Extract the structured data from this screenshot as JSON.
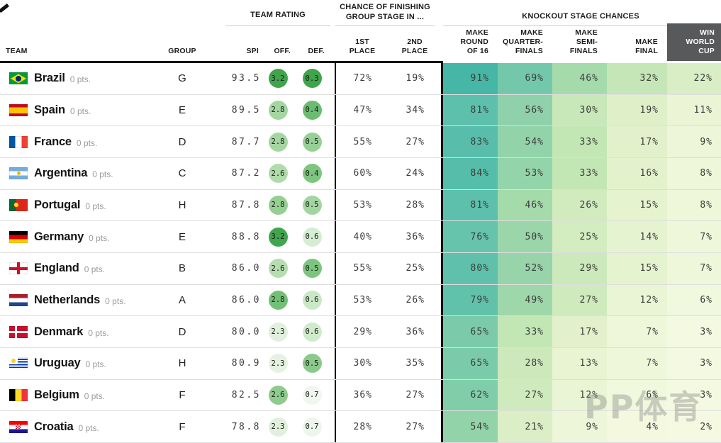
{
  "header": {
    "group_headers": {
      "team_rating": "TEAM RATING",
      "group_stage": "CHANCE OF FINISHING\nGROUP STAGE IN ...",
      "knockout": "KNOCKOUT STAGE CHANCES"
    },
    "columns": {
      "team": "TEAM",
      "group": "GROUP",
      "spi": "SPI",
      "off": "OFF.",
      "def": "DEF.",
      "p1": "1ST\nPLACE",
      "p2": "2ND\nPLACE",
      "r16": "MAKE\nROUND\nOF 16",
      "qf": "MAKE\nQUARTER-\nFINALS",
      "sf": "MAKE\nSEMI-\nFINALS",
      "mf": "MAKE\nFINAL",
      "win": "WIN\nWORLD\nCUP"
    }
  },
  "colors": {
    "selected_column_bg": "#58595b",
    "header_rule": "#131313",
    "row_border": "#dedede",
    "scale": [
      [
        0,
        [
          247,
          250,
          229
        ]
      ],
      [
        10,
        [
          236,
          246,
          215
        ]
      ],
      [
        20,
        [
          221,
          239,
          199
        ]
      ],
      [
        30,
        [
          201,
          232,
          185
        ]
      ],
      [
        40,
        [
          180,
          224,
          172
        ]
      ],
      [
        50,
        [
          155,
          214,
          170
        ]
      ],
      [
        60,
        [
          133,
          206,
          170
        ]
      ],
      [
        70,
        [
          113,
          199,
          171
        ]
      ],
      [
        80,
        [
          95,
          193,
          172
        ]
      ],
      [
        90,
        [
          72,
          184,
          167
        ]
      ],
      [
        100,
        [
          55,
          176,
          160
        ]
      ]
    ]
  },
  "watermark": {
    "text": "PP体育"
  },
  "teams": [
    {
      "name": "Brazil",
      "pts": "0 pts.",
      "flag": "br",
      "group": "G",
      "spi": "93.5",
      "off": "3.2",
      "off_color": "#3fa44b",
      "def": "0.3",
      "def_color": "#3fa44b",
      "p1": 72,
      "p2": 19,
      "r16": 91,
      "qf": 69,
      "sf": 46,
      "mf": 32,
      "win": 22
    },
    {
      "name": "Spain",
      "pts": "0 pts.",
      "flag": "es",
      "group": "E",
      "spi": "89.5",
      "off": "2.8",
      "off_color": "#a3d6a0",
      "def": "0.4",
      "def_color": "#6abd70",
      "p1": 47,
      "p2": 34,
      "r16": 81,
      "qf": 56,
      "sf": 30,
      "mf": 19,
      "win": 11
    },
    {
      "name": "France",
      "pts": "0 pts.",
      "flag": "fr",
      "group": "D",
      "spi": "87.7",
      "off": "2.8",
      "off_color": "#a3d6a0",
      "def": "0.5",
      "def_color": "#96d095",
      "p1": 55,
      "p2": 27,
      "r16": 83,
      "qf": 54,
      "sf": 33,
      "mf": 17,
      "win": 9
    },
    {
      "name": "Argentina",
      "pts": "0 pts.",
      "flag": "ar",
      "group": "C",
      "spi": "87.2",
      "off": "2.6",
      "off_color": "#b0dbaa",
      "def": "0.4",
      "def_color": "#7dc57f",
      "p1": 60,
      "p2": 24,
      "r16": 84,
      "qf": 53,
      "sf": 33,
      "mf": 16,
      "win": 8
    },
    {
      "name": "Portugal",
      "pts": "0 pts.",
      "flag": "pt",
      "group": "H",
      "spi": "87.8",
      "off": "2.8",
      "off_color": "#95cf92",
      "def": "0.5",
      "def_color": "#a3d5a0",
      "p1": 53,
      "p2": 28,
      "r16": 81,
      "qf": 46,
      "sf": 26,
      "mf": 15,
      "win": 8
    },
    {
      "name": "Germany",
      "pts": "0 pts.",
      "flag": "de",
      "group": "E",
      "spi": "88.8",
      "off": "3.2",
      "off_color": "#41a44e",
      "def": "0.6",
      "def_color": "#d5edd2",
      "p1": 40,
      "p2": 36,
      "r16": 76,
      "qf": 50,
      "sf": 25,
      "mf": 14,
      "win": 7
    },
    {
      "name": "England",
      "pts": "0 pts.",
      "flag": "eng",
      "group": "B",
      "spi": "86.0",
      "off": "2.6",
      "off_color": "#b5ddaf",
      "def": "0.5",
      "def_color": "#7dc57f",
      "p1": 55,
      "p2": 25,
      "r16": 80,
      "qf": 52,
      "sf": 29,
      "mf": 15,
      "win": 7
    },
    {
      "name": "Netherlands",
      "pts": "0 pts.",
      "flag": "nl",
      "group": "A",
      "spi": "86.0",
      "off": "2.8",
      "off_color": "#72c076",
      "def": "0.6",
      "def_color": "#c9e8c5",
      "p1": 53,
      "p2": 26,
      "r16": 79,
      "qf": 49,
      "sf": 27,
      "mf": 12,
      "win": 6
    },
    {
      "name": "Denmark",
      "pts": "0 pts.",
      "flag": "dk",
      "group": "D",
      "spi": "80.0",
      "off": "2.3",
      "off_color": "#e0f0dd",
      "def": "0.6",
      "def_color": "#d0ebcc",
      "p1": 29,
      "p2": 36,
      "r16": 65,
      "qf": 33,
      "sf": 17,
      "mf": 7,
      "win": 3
    },
    {
      "name": "Uruguay",
      "pts": "0 pts.",
      "flag": "uy",
      "group": "H",
      "spi": "80.9",
      "off": "2.3",
      "off_color": "#e5f2e1",
      "def": "0.5",
      "def_color": "#8bc98a",
      "p1": 30,
      "p2": 35,
      "r16": 65,
      "qf": 28,
      "sf": 13,
      "mf": 7,
      "win": 3
    },
    {
      "name": "Belgium",
      "pts": "0 pts.",
      "flag": "be",
      "group": "F",
      "spi": "82.5",
      "off": "2.6",
      "off_color": "#8ecb8c",
      "def": "0.7",
      "def_color": "#f0f7ee",
      "p1": 36,
      "p2": 27,
      "r16": 62,
      "qf": 27,
      "sf": 12,
      "mf": 6,
      "win": 3
    },
    {
      "name": "Croatia",
      "pts": "0 pts.",
      "flag": "hr",
      "group": "F",
      "spi": "78.8",
      "off": "2.3",
      "off_color": "#e0f0dd",
      "def": "0.7",
      "def_color": "#edf6ea",
      "p1": 28,
      "p2": 27,
      "r16": 54,
      "qf": 21,
      "sf": 9,
      "mf": 4,
      "win": 2
    }
  ]
}
